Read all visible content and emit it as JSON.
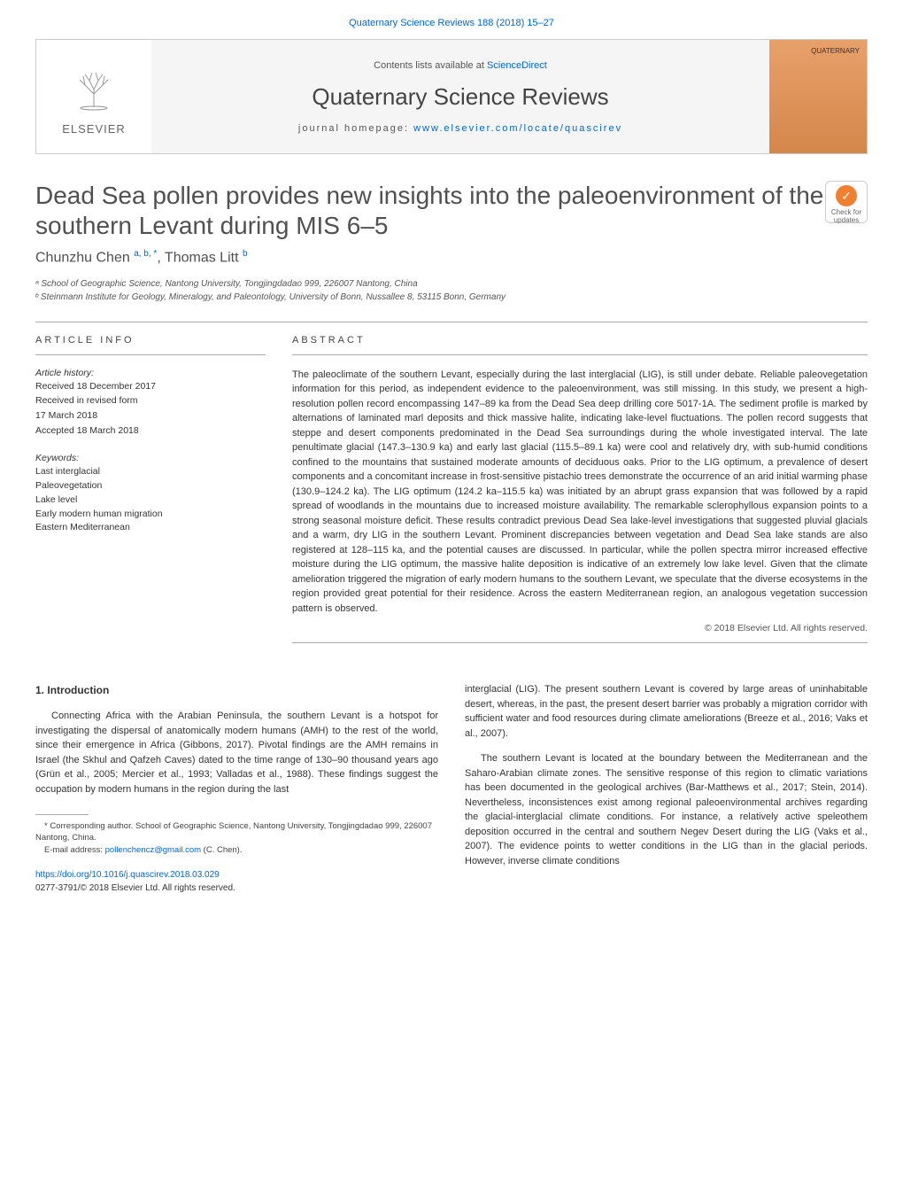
{
  "header": {
    "citation_link": "Quaternary Science Reviews 188 (2018) 15–27",
    "contents_prefix": "Contents lists available at ",
    "contents_link": "ScienceDirect",
    "journal_title": "Quaternary Science Reviews",
    "homepage_prefix": "journal homepage: ",
    "homepage_link": "www.elsevier.com/locate/quascirev",
    "publisher": "ELSEVIER",
    "cover_label": "QUATERNARY"
  },
  "article": {
    "title": "Dead Sea pollen provides new insights into the paleoenvironment of the southern Levant during MIS 6–5",
    "check_badge": "Check for updates",
    "authors_html": "Chunzhu Chen <sup>a, b, *</sup>, Thomas Litt <sup>b</sup>",
    "affiliations": [
      "ᵃ School of Geographic Science, Nantong University, Tongjingdadao 999, 226007 Nantong, China",
      "ᵇ Steinmann Institute for Geology, Mineralogy, and Paleontology, University of Bonn, Nussallee 8, 53115 Bonn, Germany"
    ]
  },
  "info": {
    "section_head": "ARTICLE INFO",
    "history_label": "Article history:",
    "history": [
      "Received 18 December 2017",
      "Received in revised form",
      "17 March 2018",
      "Accepted 18 March 2018"
    ],
    "keywords_label": "Keywords:",
    "keywords": [
      "Last interglacial",
      "Paleovegetation",
      "Lake level",
      "Early modern human migration",
      "Eastern Mediterranean"
    ]
  },
  "abstract": {
    "section_head": "ABSTRACT",
    "text": "The paleoclimate of the southern Levant, especially during the last interglacial (LIG), is still under debate. Reliable paleovegetation information for this period, as independent evidence to the paleoenvironment, was still missing. In this study, we present a high-resolution pollen record encompassing 147–89 ka from the Dead Sea deep drilling core 5017-1A. The sediment profile is marked by alternations of laminated marl deposits and thick massive halite, indicating lake-level fluctuations. The pollen record suggests that steppe and desert components predominated in the Dead Sea surroundings during the whole investigated interval. The late penultimate glacial (147.3–130.9 ka) and early last glacial (115.5–89.1 ka) were cool and relatively dry, with sub-humid conditions confined to the mountains that sustained moderate amounts of deciduous oaks. Prior to the LIG optimum, a prevalence of desert components and a concomitant increase in frost-sensitive pistachio trees demonstrate the occurrence of an arid initial warming phase (130.9–124.2 ka). The LIG optimum (124.2 ka–115.5 ka) was initiated by an abrupt grass expansion that was followed by a rapid spread of woodlands in the mountains due to increased moisture availability. The remarkable sclerophyllous expansion points to a strong seasonal moisture deficit. These results contradict previous Dead Sea lake-level investigations that suggested pluvial glacials and a warm, dry LIG in the southern Levant. Prominent discrepancies between vegetation and Dead Sea lake stands are also registered at 128–115 ka, and the potential causes are discussed. In particular, while the pollen spectra mirror increased effective moisture during the LIG optimum, the massive halite deposition is indicative of an extremely low lake level. Given that the climate amelioration triggered the migration of early modern humans to the southern Levant, we speculate that the diverse ecosystems in the region provided great potential for their residence. Across the eastern Mediterranean region, an analogous vegetation succession pattern is observed.",
    "copyright": "© 2018 Elsevier Ltd. All rights reserved."
  },
  "body": {
    "section_num": "1.",
    "section_title": "Introduction",
    "col1_p1": "Connecting Africa with the Arabian Peninsula, the southern Levant is a hotspot for investigating the dispersal of anatomically modern humans (AMH) to the rest of the world, since their emergence in Africa (Gibbons, 2017). Pivotal findings are the AMH remains in Israel (the Skhul and Qafzeh Caves) dated to the time range of 130–90 thousand years ago (Grün et al., 2005; Mercier et al., 1993; Valladas et al., 1988). These findings suggest the occupation by modern humans in the region during the last",
    "col2_p1": "interglacial (LIG). The present southern Levant is covered by large areas of uninhabitable desert, whereas, in the past, the present desert barrier was probably a migration corridor with sufficient water and food resources during climate ameliorations (Breeze et al., 2016; Vaks et al., 2007).",
    "col2_p2": "The southern Levant is located at the boundary between the Mediterranean and the Saharo-Arabian climate zones. The sensitive response of this region to climatic variations has been documented in the geological archives (Bar-Matthews et al., 2017; Stein, 2014). Nevertheless, inconsistences exist among regional paleoenvironmental archives regarding the glacial-interglacial climate conditions. For instance, a relatively active speleothem deposition occurred in the central and southern Negev Desert during the LIG (Vaks et al., 2007). The evidence points to wetter conditions in the LIG than in the glacial periods. However, inverse climate conditions"
  },
  "footnotes": {
    "corresponding": "* Corresponding author. School of Geographic Science, Nantong University, Tongjingdadao 999, 226007 Nantong, China.",
    "email_label": "E-mail address: ",
    "email": "pollenchencz@gmail.com",
    "email_suffix": " (C. Chen)."
  },
  "footer": {
    "doi": "https://doi.org/10.1016/j.quascirev.2018.03.029",
    "issn_line": "0277-3791/© 2018 Elsevier Ltd. All rights reserved."
  },
  "colors": {
    "link": "#0066cc",
    "heading": "#505050",
    "cover_bg": "#d4874a"
  }
}
